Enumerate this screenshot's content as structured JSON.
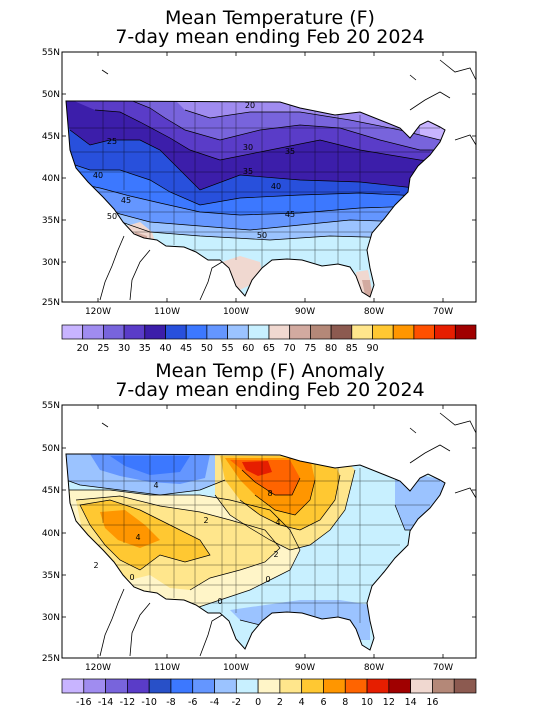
{
  "map1": {
    "title_line1": "Mean Temperature (F)",
    "title_line2": "7-day mean ending Feb 20 2024",
    "lat_ticks": [
      "55N",
      "50N",
      "45N",
      "40N",
      "35N",
      "30N",
      "25N"
    ],
    "lon_ticks": [
      "120W",
      "110W",
      "100W",
      "90W",
      "80W",
      "70W"
    ],
    "contour_labels": [
      "20",
      "25",
      "30",
      "35",
      "35",
      "40",
      "40",
      "45",
      "45",
      "50",
      "50"
    ],
    "colorbar": {
      "colors": [
        "#c8b4ff",
        "#a08cf0",
        "#7864dc",
        "#5a3cc8",
        "#3c1eaa",
        "#2850dc",
        "#3c78ff",
        "#6496ff",
        "#9bc3ff",
        "#c8f0ff",
        "#f0d8d0",
        "#d2aaa0",
        "#b48878",
        "#8c5a50",
        "#ffe68c",
        "#ffc832",
        "#ff9600",
        "#ff5000",
        "#e61e00",
        "#a00000"
      ],
      "labels": [
        "20",
        "25",
        "30",
        "35",
        "40",
        "45",
        "50",
        "55",
        "60",
        "65",
        "70",
        "75",
        "80",
        "85",
        "90"
      ]
    }
  },
  "map2": {
    "title_line1": "Mean Temp (F) Anomaly",
    "title_line2": "7-day mean ending Feb 20 2024",
    "lat_ticks": [
      "55N",
      "50N",
      "45N",
      "40N",
      "35N",
      "30N",
      "25N"
    ],
    "lon_ticks": [
      "120W",
      "110W",
      "100W",
      "90W",
      "80W",
      "70W"
    ],
    "contour_labels": [
      "4",
      "4",
      "2",
      "2",
      "0",
      "8",
      "4",
      "2",
      "0",
      "0"
    ],
    "colorbar": {
      "colors": [
        "#c8b4ff",
        "#a08cf0",
        "#7864dc",
        "#5a3cc8",
        "#2850c8",
        "#3c78ff",
        "#6496ff",
        "#9bc3ff",
        "#c8f0ff",
        "#fff5c8",
        "#ffe68c",
        "#ffc832",
        "#ff9600",
        "#ff6400",
        "#e61e00",
        "#a00000",
        "#f0d8d0",
        "#b48878",
        "#8c5a50"
      ],
      "labels": [
        "-16",
        "-14",
        "-12",
        "-10",
        "-8",
        "-6",
        "-4",
        "-2",
        "0",
        "2",
        "4",
        "6",
        "8",
        "10",
        "12",
        "14",
        "16"
      ]
    }
  }
}
